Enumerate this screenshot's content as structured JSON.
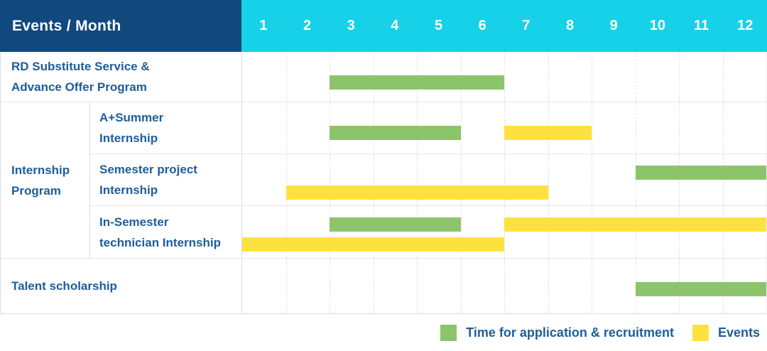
{
  "title_cell": "Events / Month",
  "months": [
    "1",
    "2",
    "3",
    "4",
    "5",
    "6",
    "7",
    "8",
    "9",
    "10",
    "11",
    "12"
  ],
  "colors": {
    "navy": "#11497e",
    "cyan": "#17d1e9",
    "text_blue": "#1e5d9c",
    "application_green": "#8cc46b",
    "event_yellow": "#fde23f",
    "grid_line": "#e4e4e4",
    "cell_border": "#dcdcdc",
    "row_line": "#e7e7e7"
  },
  "legend": [
    {
      "type": "application",
      "label": "Time for application & recruitment"
    },
    {
      "type": "event",
      "label": "Events"
    }
  ],
  "chart_data": {
    "type": "gantt",
    "x_unit": "month",
    "x_domain": [
      1,
      12
    ],
    "grid": "dashed-vertical",
    "group_label": "Internship\nProgram",
    "rows": [
      {
        "group": null,
        "label": "RD Substitute Service &\nAdvance Offer Program",
        "lines": [
          [
            {
              "type": "application",
              "start": 3,
              "end": 6
            }
          ]
        ]
      },
      {
        "group": "Internship Program",
        "label": "A+Summer\nInternship",
        "lines": [
          [
            {
              "type": "application",
              "start": 3,
              "end": 5
            },
            {
              "type": "event",
              "start": 7,
              "end": 8
            }
          ]
        ]
      },
      {
        "group": "Internship Program",
        "label": "Semester project\nInternship",
        "lines": [
          [
            {
              "type": "application",
              "start": 10,
              "end": 12
            }
          ],
          [
            {
              "type": "event",
              "start": 2,
              "end": 7
            }
          ]
        ]
      },
      {
        "group": "Internship Program",
        "label": "In-Semester\ntechnician Internship",
        "lines": [
          [
            {
              "type": "application",
              "start": 3,
              "end": 5
            },
            {
              "type": "event",
              "start": 7,
              "end": 12
            }
          ],
          [
            {
              "type": "event",
              "start": 1,
              "end": 6
            }
          ]
        ]
      },
      {
        "group": null,
        "label": "Talent scholarship",
        "lines": [
          [
            {
              "type": "application",
              "start": 10,
              "end": 12
            }
          ]
        ]
      }
    ]
  }
}
